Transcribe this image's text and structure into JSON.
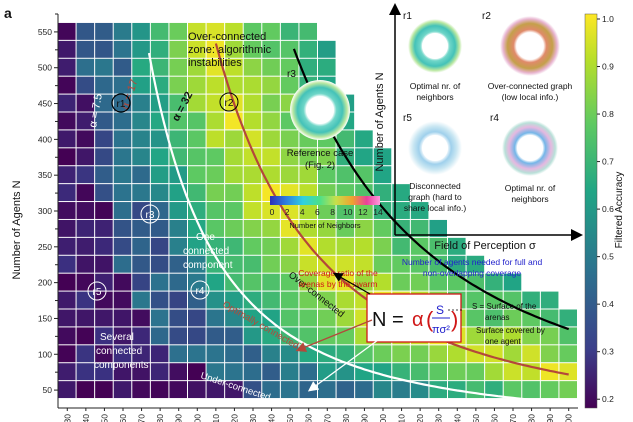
{
  "panel_letter": "a",
  "chart_data": {
    "type": "heatmap",
    "title": "",
    "xlabel": "Field of Perception σ",
    "ylabel": "Number of Agents N",
    "x": {
      "min": 30,
      "max": 300,
      "step": 10
    },
    "ylim": [
      25,
      575
    ],
    "yticks": [
      50,
      100,
      150,
      200,
      250,
      300,
      350,
      400,
      450,
      500,
      550
    ],
    "xticks": [
      30,
      40,
      50,
      60,
      70,
      80,
      90,
      100,
      110,
      120,
      130,
      140,
      150,
      160,
      170,
      180,
      190,
      200,
      210,
      220,
      230,
      240,
      250,
      260,
      270,
      280,
      290,
      300
    ],
    "colorbar": {
      "label": "Filtered Accuracy",
      "min": 0.2,
      "max": 1.0,
      "ticks": [
        "1.0",
        "0.9",
        "0.8",
        "0.7",
        "0.6",
        "0.5",
        "0.4",
        "0.3",
        "0.2"
      ],
      "colors": [
        "#440154",
        "#3b2f80",
        "#2c728e",
        "#21a585",
        "#5ec962",
        "#b5de2b",
        "#fde725"
      ]
    },
    "curves": [
      {
        "alpha": 7.5,
        "label": "α = 7.5",
        "color": "#ffffff"
      },
      {
        "alpha": 17,
        "label": "α = 17",
        "color": "#b4483a"
      },
      {
        "alpha": 32,
        "label": "α = 32",
        "color": "#000000"
      }
    ],
    "zones": [
      "Over-connected zone: algorithmic instabilities",
      "One connected component",
      "Several connected components",
      "Over-connected",
      "Optimally connected",
      "Under-connected"
    ],
    "markers": [
      "r1",
      "r2",
      "r3",
      "r4",
      "r5"
    ],
    "formula": {
      "lhs": "N =",
      "coef": "α",
      "num": "S",
      "den": "πσ²",
      "coverage_ratio": "Coverage ratio of the arenas by the swarm",
      "agents_needed": "Number of agents needed for full and non-overlapping coverage",
      "surface_arena": "S = Surface of the arenas",
      "surface_agent": "Surface covered by one agent"
    }
  },
  "inset_ref": {
    "label": "r3",
    "caption": "Reference case (Fig. 2)",
    "scale_ticks": [
      "0",
      "2",
      "4",
      "6",
      "8",
      "10",
      "12",
      "14"
    ],
    "scale_label": "Number of Neighbors"
  },
  "inset_grid": {
    "ylabel": "Number of Agents N",
    "xlabel": "Field of Perception σ",
    "cells": [
      {
        "id": "r1",
        "caption": [
          "Optimal nr. of",
          "neighbors"
        ]
      },
      {
        "id": "r2",
        "caption": [
          "Over-connected graph",
          "(low local info.)"
        ]
      },
      {
        "id": "r5",
        "caption": [
          "Disconnected",
          "graph (hard to",
          "share local info.)"
        ]
      },
      {
        "id": "r4",
        "caption": [
          "Optimal nr. of",
          "neighbors"
        ]
      }
    ]
  }
}
